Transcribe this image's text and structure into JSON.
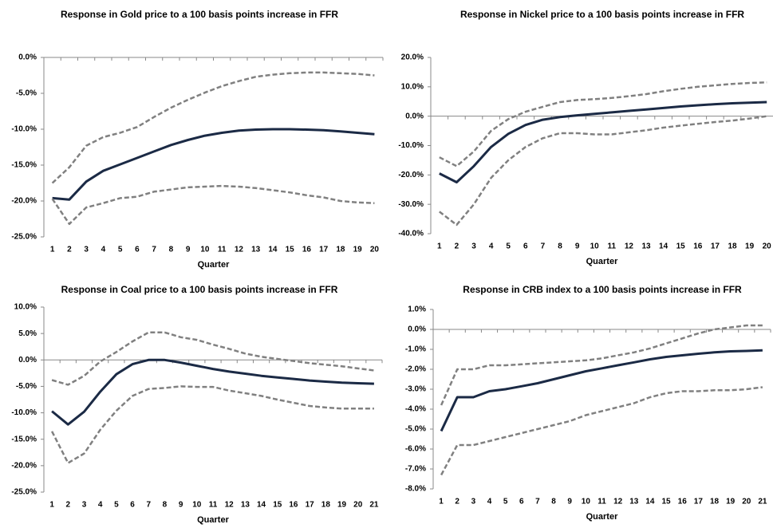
{
  "chart_data": [
    {
      "type": "line",
      "title": "Response in Gold price to a 100 basis points increase in FFR",
      "x_label": "Quarter",
      "categories": [
        1,
        2,
        3,
        4,
        5,
        6,
        7,
        8,
        9,
        10,
        11,
        12,
        13,
        14,
        15,
        16,
        17,
        18,
        19,
        20
      ],
      "ylim": [
        -25,
        0
      ],
      "yticks": [
        {
          "value": -25,
          "label": "-25.0%"
        },
        {
          "value": -20,
          "label": "-20.0%"
        },
        {
          "value": -15,
          "label": "-15.0%"
        },
        {
          "value": -10,
          "label": "-10.0%"
        },
        {
          "value": -5,
          "label": "-5.0%"
        },
        {
          "value": 0,
          "label": "0.0%"
        }
      ],
      "series": [
        {
          "color": "#808080",
          "line_style": "dashed",
          "values": [
            -17.5,
            -15.3,
            -12.3,
            -11.1,
            -10.5,
            -9.7,
            -8.3,
            -7.0,
            -5.9,
            -4.9,
            -4.0,
            -3.3,
            -2.7,
            -2.4,
            -2.2,
            -2.1,
            -2.1,
            -2.2,
            -2.3,
            -2.5
          ]
        },
        {
          "color": "#1b2a45",
          "line_style": "solid",
          "values": [
            -19.6,
            -19.8,
            -17.3,
            -15.8,
            -14.9,
            -14.0,
            -13.1,
            -12.2,
            -11.5,
            -10.9,
            -10.5,
            -10.2,
            -10.05,
            -10.0,
            -10.0,
            -10.05,
            -10.15,
            -10.3,
            -10.5,
            -10.7
          ]
        },
        {
          "color": "#808080",
          "line_style": "dashed",
          "values": [
            -19.7,
            -23.2,
            -20.9,
            -20.3,
            -19.6,
            -19.4,
            -18.7,
            -18.4,
            -18.1,
            -18.0,
            -17.9,
            -18.0,
            -18.2,
            -18.5,
            -18.8,
            -19.2,
            -19.5,
            -20.0,
            -20.2,
            -20.3
          ]
        }
      ]
    },
    {
      "type": "line",
      "title": "Response in Nickel price to a 100 basis points increase in FFR",
      "x_label": "Quarter",
      "categories": [
        1,
        2,
        3,
        4,
        5,
        6,
        7,
        8,
        9,
        10,
        11,
        12,
        13,
        14,
        15,
        16,
        17,
        18,
        19,
        20
      ],
      "ylim": [
        -40,
        20
      ],
      "yticks": [
        {
          "value": -40,
          "label": "-40.0%"
        },
        {
          "value": -30,
          "label": "-30.0%"
        },
        {
          "value": -20,
          "label": "-20.0%"
        },
        {
          "value": -10,
          "label": "-10.0%"
        },
        {
          "value": 0,
          "label": "0.0%"
        },
        {
          "value": 10,
          "label": "10.0%"
        },
        {
          "value": 20,
          "label": "20.0%"
        }
      ],
      "series": [
        {
          "color": "#808080",
          "line_style": "dashed",
          "values": [
            -14,
            -17,
            -12,
            -5,
            -1,
            1.5,
            3.2,
            4.8,
            5.5,
            5.8,
            6.2,
            6.8,
            7.5,
            8.5,
            9.3,
            10,
            10.5,
            11,
            11.3,
            11.5
          ]
        },
        {
          "color": "#1b2a45",
          "line_style": "solid",
          "values": [
            -19.5,
            -22.5,
            -17,
            -10.5,
            -6,
            -3,
            -1.2,
            -0.3,
            0.3,
            0.8,
            1.3,
            1.8,
            2.3,
            2.8,
            3.3,
            3.7,
            4.1,
            4.4,
            4.6,
            4.8
          ]
        },
        {
          "color": "#808080",
          "line_style": "dashed",
          "values": [
            -32.5,
            -37,
            -30,
            -21,
            -15,
            -10.5,
            -7.5,
            -5.8,
            -5.8,
            -6.2,
            -6.2,
            -5.5,
            -4.8,
            -3.9,
            -3.2,
            -2.6,
            -2,
            -1.5,
            -0.8,
            0
          ]
        }
      ]
    },
    {
      "type": "line",
      "title": "Response in Coal price to a 100 basis points increase in FFR",
      "x_label": "Quarter",
      "categories": [
        1,
        2,
        3,
        4,
        5,
        6,
        7,
        8,
        9,
        10,
        11,
        12,
        13,
        14,
        15,
        16,
        17,
        18,
        19,
        20,
        21
      ],
      "ylim": [
        -25,
        10
      ],
      "yticks": [
        {
          "value": -25,
          "label": "-25.0%"
        },
        {
          "value": -20,
          "label": "-20.0%"
        },
        {
          "value": -15,
          "label": "-15.0%"
        },
        {
          "value": -10,
          "label": "-10.0%"
        },
        {
          "value": -5,
          "label": "-5.0%"
        },
        {
          "value": 0,
          "label": "0.0%"
        },
        {
          "value": 5,
          "label": "5.0%"
        },
        {
          "value": 10,
          "label": "10.0%"
        }
      ],
      "series": [
        {
          "color": "#808080",
          "line_style": "dashed",
          "values": [
            -3.8,
            -4.7,
            -3,
            -0.3,
            1.5,
            3.5,
            5.2,
            5.2,
            4.3,
            3.8,
            2.9,
            2.1,
            1.2,
            0.6,
            0.2,
            -0.2,
            -0.6,
            -0.9,
            -1.2,
            -1.6,
            -2
          ]
        },
        {
          "color": "#1b2a45",
          "line_style": "solid",
          "values": [
            -9.7,
            -12.2,
            -9.8,
            -6,
            -2.7,
            -0.8,
            0,
            0,
            -0.5,
            -1.1,
            -1.7,
            -2.2,
            -2.6,
            -3,
            -3.3,
            -3.6,
            -3.9,
            -4.1,
            -4.3,
            -4.4,
            -4.5
          ]
        },
        {
          "color": "#808080",
          "line_style": "dashed",
          "values": [
            -13.5,
            -19.5,
            -17.7,
            -13.2,
            -9.6,
            -6.8,
            -5.5,
            -5.3,
            -5,
            -5.1,
            -5.1,
            -5.8,
            -6.3,
            -6.8,
            -7.5,
            -8.1,
            -8.7,
            -9,
            -9.2,
            -9.2,
            -9.2
          ]
        }
      ]
    },
    {
      "type": "line",
      "title": "Response in CRB index to a 100 basis points increase in FFR",
      "x_label": "Quarter",
      "categories": [
        1,
        2,
        3,
        4,
        5,
        6,
        7,
        8,
        9,
        10,
        11,
        12,
        13,
        14,
        15,
        16,
        17,
        18,
        19,
        20,
        21
      ],
      "ylim": [
        -8,
        1
      ],
      "yticks": [
        {
          "value": -8,
          "label": "-8.0%"
        },
        {
          "value": -7,
          "label": "-7.0%"
        },
        {
          "value": -6,
          "label": "-6.0%"
        },
        {
          "value": -5,
          "label": "-5.0%"
        },
        {
          "value": -4,
          "label": "-4.0%"
        },
        {
          "value": -3,
          "label": "-3.0%"
        },
        {
          "value": -2,
          "label": "-2.0%"
        },
        {
          "value": -1,
          "label": "-1.0%"
        },
        {
          "value": 0,
          "label": "0.0%"
        },
        {
          "value": 1,
          "label": "1.0%"
        }
      ],
      "series": [
        {
          "color": "#808080",
          "line_style": "dashed",
          "values": [
            -3.8,
            -2.0,
            -2.0,
            -1.8,
            -1.8,
            -1.75,
            -1.7,
            -1.65,
            -1.6,
            -1.55,
            -1.45,
            -1.3,
            -1.15,
            -0.95,
            -0.7,
            -0.45,
            -0.2,
            0,
            0.1,
            0.2,
            0.2
          ]
        },
        {
          "color": "#1b2a45",
          "line_style": "solid",
          "values": [
            -5.1,
            -3.4,
            -3.4,
            -3.1,
            -3.0,
            -2.85,
            -2.7,
            -2.5,
            -2.3,
            -2.1,
            -1.95,
            -1.8,
            -1.65,
            -1.5,
            -1.38,
            -1.3,
            -1.22,
            -1.15,
            -1.1,
            -1.08,
            -1.05
          ]
        },
        {
          "color": "#808080",
          "line_style": "dashed",
          "values": [
            -7.3,
            -5.8,
            -5.8,
            -5.6,
            -5.4,
            -5.2,
            -5.0,
            -4.8,
            -4.6,
            -4.3,
            -4.1,
            -3.9,
            -3.7,
            -3.4,
            -3.2,
            -3.1,
            -3.1,
            -3.05,
            -3.05,
            -3.0,
            -2.9
          ]
        }
      ]
    }
  ]
}
